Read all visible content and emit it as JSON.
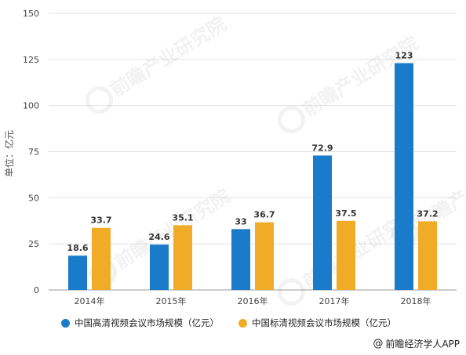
{
  "chart_data": {
    "type": "bar",
    "categories": [
      "2014年",
      "2015年",
      "2016年",
      "2017年",
      "2018年"
    ],
    "series": [
      {
        "name": "中国高清视频会议市场规模（亿元）",
        "values": [
          18.6,
          24.6,
          33,
          72.9,
          123
        ],
        "labels": [
          "18.6",
          "24.6",
          "33",
          "72.9",
          "123"
        ],
        "color": "#1a7bcb"
      },
      {
        "name": "中国标清视频会议市场规模（亿元）",
        "values": [
          33.7,
          35.1,
          36.7,
          37.5,
          37.2
        ],
        "labels": [
          "33.7",
          "35.1",
          "36.7",
          "37.5",
          "37.2"
        ],
        "color": "#f0ac27"
      }
    ],
    "ylabel": "单位：亿元",
    "ylim": [
      0,
      150
    ],
    "yticks": [
      0,
      25,
      50,
      75,
      100,
      125,
      150
    ],
    "grid": true,
    "legend": "bottom"
  },
  "source": "前瞻经济学人APP",
  "watermark": "前瞻产业研究院"
}
